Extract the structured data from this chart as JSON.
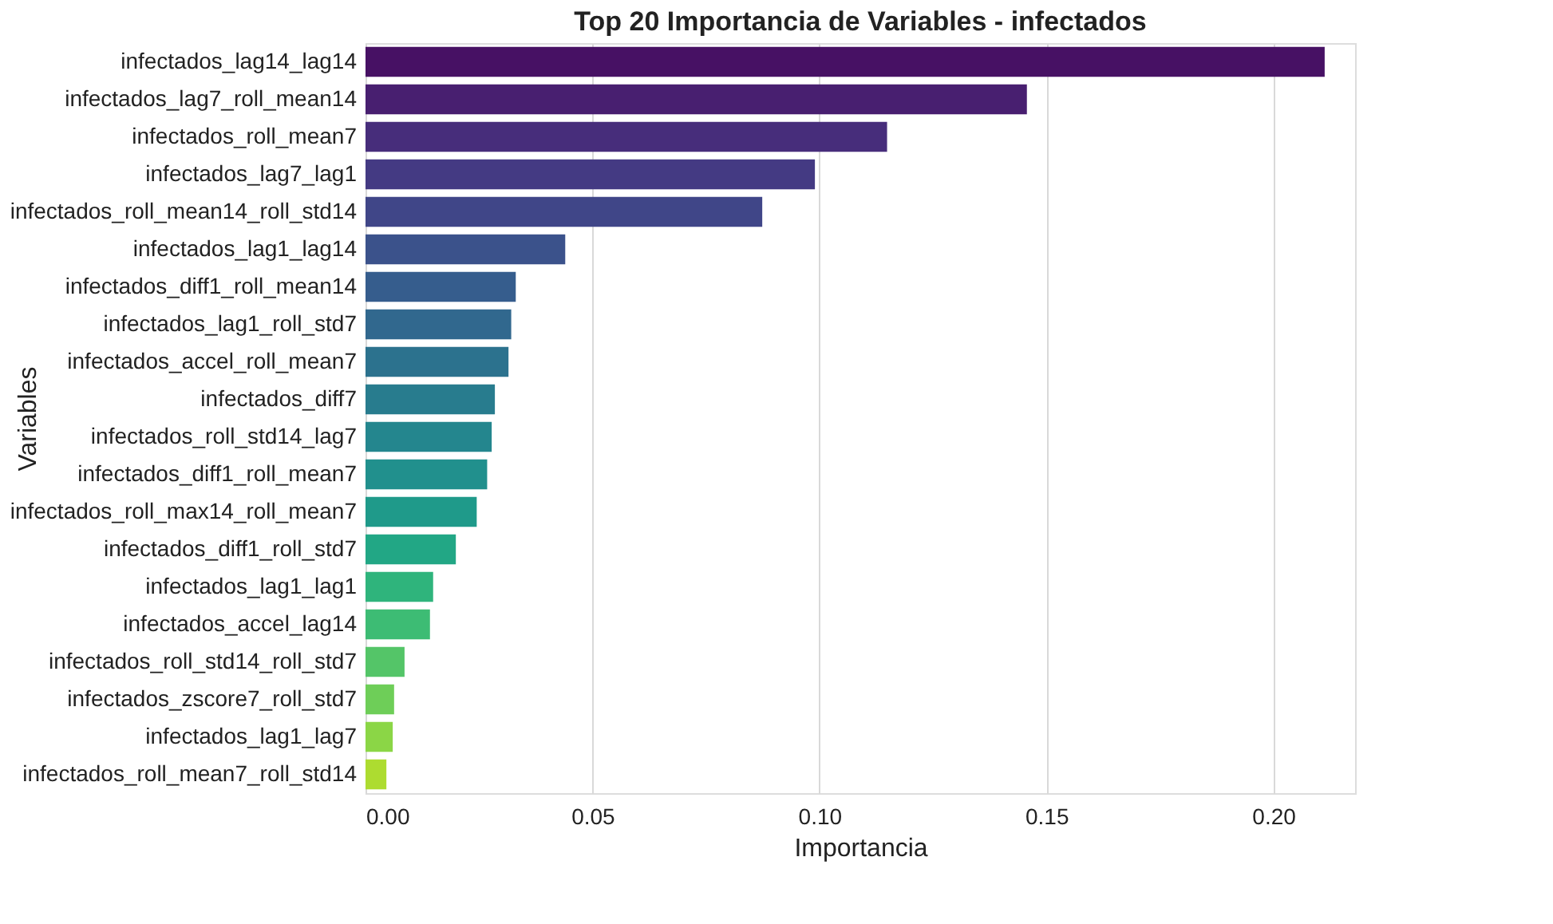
{
  "chart_data": {
    "type": "bar",
    "orientation": "horizontal",
    "title": "Top 20 Importancia de Variables - infectados",
    "xlabel": "Importancia",
    "ylabel": "Variables",
    "categories": [
      "infectados_lag14_lag14",
      "infectados_lag7_roll_mean14",
      "infectados_roll_mean7",
      "infectados_lag7_lag1",
      "infectados_roll_mean14_roll_std14",
      "infectados_lag1_lag14",
      "infectados_diff1_roll_mean14",
      "infectados_lag1_roll_std7",
      "infectados_accel_roll_mean7",
      "infectados_diff7",
      "infectados_roll_std14_lag7",
      "infectados_diff1_roll_mean7",
      "infectados_roll_max14_roll_mean7",
      "infectados_diff1_roll_std7",
      "infectados_lag1_lag1",
      "infectados_accel_lag14",
      "infectados_roll_std14_roll_std7",
      "infectados_zscore7_roll_std7",
      "infectados_lag1_lag7",
      "infectados_roll_mean7_roll_std14"
    ],
    "values": [
      0.2113,
      0.1457,
      0.1149,
      0.099,
      0.0874,
      0.044,
      0.0331,
      0.0321,
      0.0315,
      0.0285,
      0.0278,
      0.0268,
      0.0245,
      0.0199,
      0.0149,
      0.0142,
      0.0086,
      0.0063,
      0.006,
      0.0046
    ],
    "colors": [
      "#471164",
      "#481f70",
      "#472d7b",
      "#443a83",
      "#404688",
      "#3b528b",
      "#365d8d",
      "#31688e",
      "#2c728e",
      "#287c8e",
      "#24868e",
      "#21908d",
      "#1f9a8a",
      "#22a785",
      "#2fb47c",
      "#3dbc74",
      "#54c568",
      "#6ece58",
      "#8bd646",
      "#addc30"
    ],
    "xlim": [
      0,
      0.218
    ],
    "xticks": [
      {
        "value": 0,
        "label": "0.00"
      },
      {
        "value": 0.05,
        "label": "0.05"
      },
      {
        "value": 0.1,
        "label": "0.10"
      },
      {
        "value": 0.15,
        "label": "0.15"
      },
      {
        "value": 0.2,
        "label": "0.20"
      }
    ],
    "grid": "x"
  }
}
